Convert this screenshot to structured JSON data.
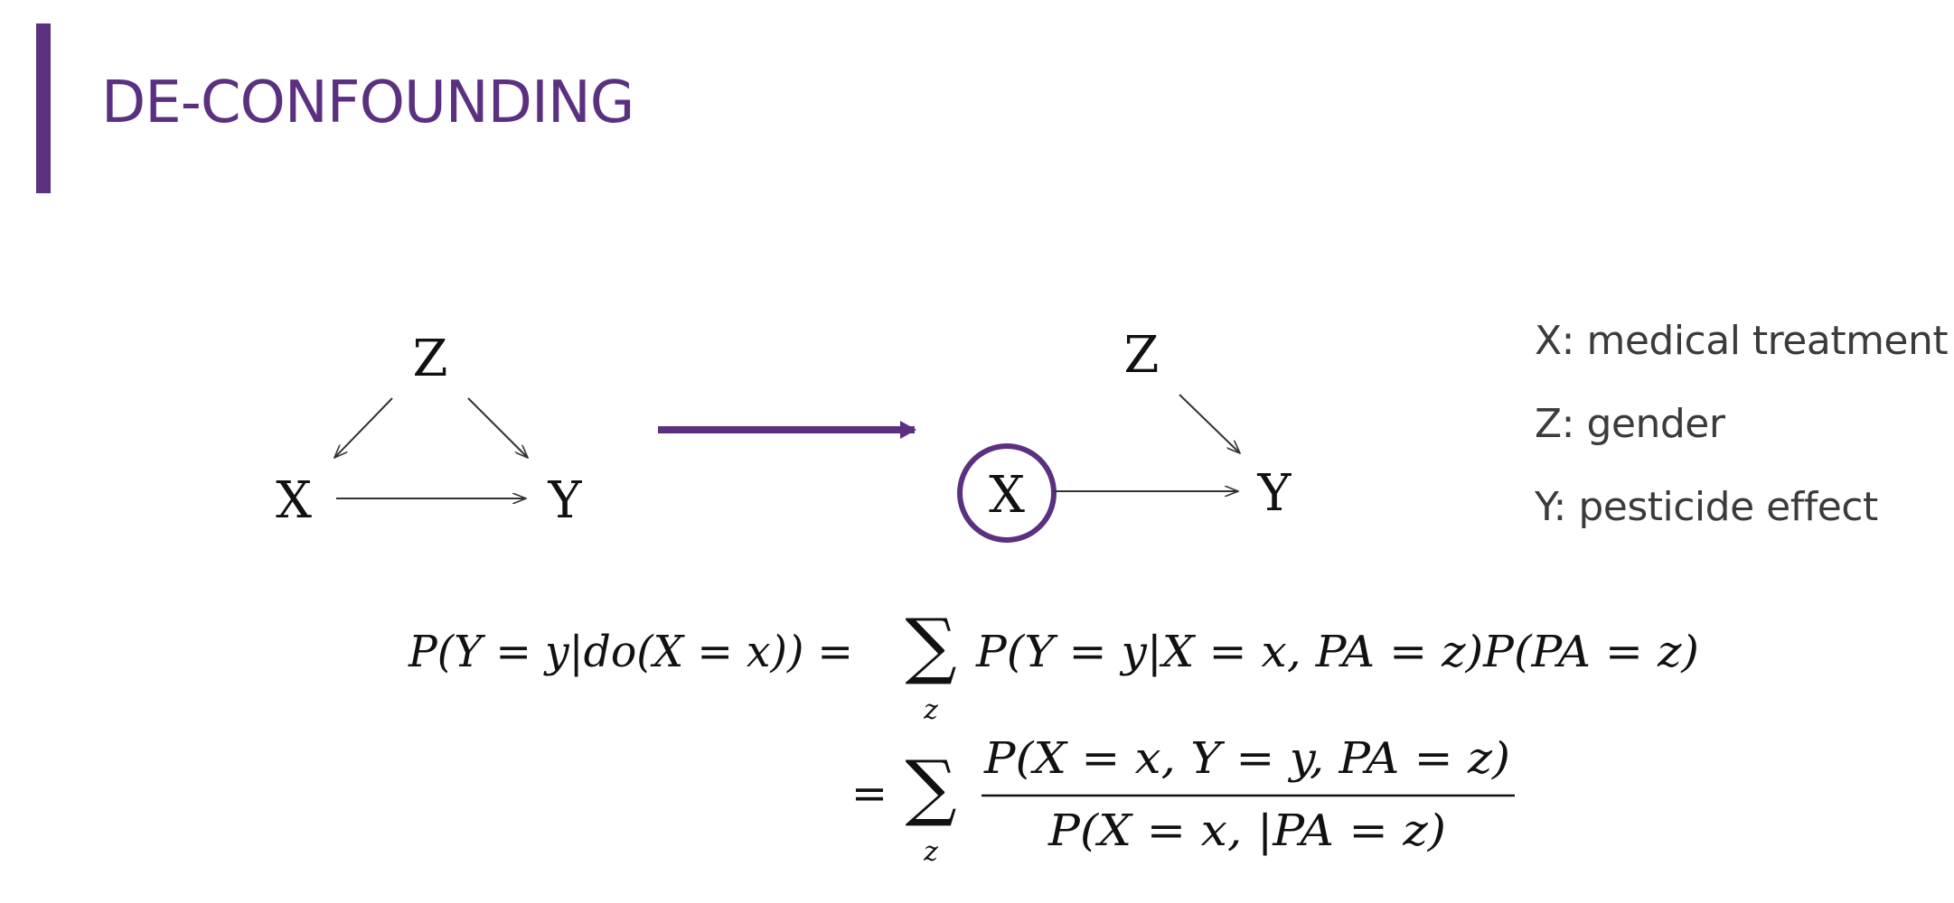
{
  "slide": {
    "title": "DE-CONFOUNDING",
    "accent_color": "#5b3080"
  },
  "diagram_left": {
    "nodes": {
      "z": "Z",
      "x": "X",
      "y": "Y"
    },
    "edges": [
      [
        "Z",
        "X"
      ],
      [
        "Z",
        "Y"
      ],
      [
        "X",
        "Y"
      ]
    ]
  },
  "transform_arrow_icon": "right-arrow-icon",
  "diagram_right": {
    "nodes": {
      "z": "Z",
      "x": "X",
      "y": "Y"
    },
    "edges": [
      [
        "Z",
        "Y"
      ],
      [
        "X",
        "Y"
      ]
    ],
    "intervened_node": "X"
  },
  "legend": [
    {
      "text": "X: medical treatment"
    },
    {
      "text": "Z: gender"
    },
    {
      "text": "Y: pesticide effect"
    }
  ],
  "formula": {
    "line1_lhs": "P(Y = y|do(X = x)) =",
    "sum_symbol": "∑",
    "sum_index": "z",
    "line1_rhs": "P(Y = y|X = x, PA = z)P(PA = z)",
    "line2_eq": "=",
    "line2_numerator": "P(X = x, Y = y, PA = z)",
    "line2_denominator": "P(X = x, |PA = z)"
  }
}
